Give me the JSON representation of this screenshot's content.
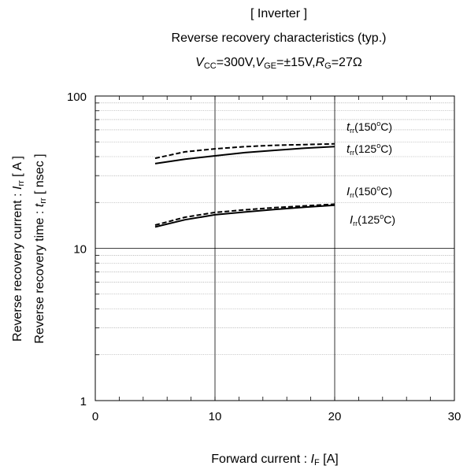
{
  "chart_data": {
    "type": "line",
    "title": {
      "line1": "[ Inverter ]",
      "line2": "Reverse recovery characteristics  (typ.)",
      "line3": {
        "v": "V",
        "v_sub": "CC",
        "v_val": "=300V,",
        "vge": "V",
        "vge_sub": "GE",
        "vge_val": "=±15V,",
        "r": "R",
        "r_sub": "G",
        "r_val": "=27Ω"
      }
    },
    "xlabel": {
      "text": "Forward current : ",
      "sym": "I",
      "sub": "F",
      "unit": " [A]"
    },
    "ylabel": {
      "line1": {
        "text": "Reverse recovery current  :  ",
        "sym": "I",
        "sub": "rr",
        "unit": "  [ A ]"
      },
      "line2": {
        "text": "Reverse recovery time  :  ",
        "sym": "t",
        "sub": "rr",
        "unit": "  [ nsec ]"
      }
    },
    "xlim": [
      0,
      30
    ],
    "ylim": [
      1,
      100
    ],
    "yscale": "log",
    "x_ticks": [
      "0",
      "10",
      "20",
      "30"
    ],
    "y_ticks": [
      "1",
      "10",
      "100"
    ],
    "grid": true,
    "series": [
      {
        "name": "trr(150oC)",
        "sym": "t",
        "sub": "rr",
        "temp": "(150",
        "deg": "o",
        "unitC": "C)",
        "style": "dashed",
        "x": [
          5,
          7.5,
          10,
          12.5,
          15,
          17.5,
          20
        ],
        "y": [
          39,
          43,
          45,
          46.5,
          47.5,
          48,
          48.5
        ]
      },
      {
        "name": "trr(125oC)",
        "sym": "t",
        "sub": "rr",
        "temp": "(125",
        "deg": "o",
        "unitC": "C)",
        "style": "solid",
        "x": [
          5,
          7.5,
          10,
          12.5,
          15,
          17.5,
          20
        ],
        "y": [
          36,
          38.5,
          40.5,
          42.5,
          44,
          45.5,
          46.5
        ]
      },
      {
        "name": "Irr(150oC)",
        "sym": "I",
        "sub": "rr",
        "temp": "(150",
        "deg": "o",
        "unitC": "C)",
        "style": "dashed",
        "x": [
          5,
          7.5,
          10,
          12.5,
          15,
          17.5,
          20
        ],
        "y": [
          14.2,
          16,
          17.2,
          17.9,
          18.5,
          19,
          19.5
        ]
      },
      {
        "name": "Irr(125oC)",
        "sym": "I",
        "sub": "rr",
        "temp": "(125",
        "deg": "o",
        "unitC": "C)",
        "style": "solid",
        "x": [
          5,
          7.5,
          10,
          12.5,
          15,
          17.5,
          20
        ],
        "y": [
          13.8,
          15.4,
          16.6,
          17.3,
          18,
          18.6,
          19.2
        ]
      }
    ]
  }
}
